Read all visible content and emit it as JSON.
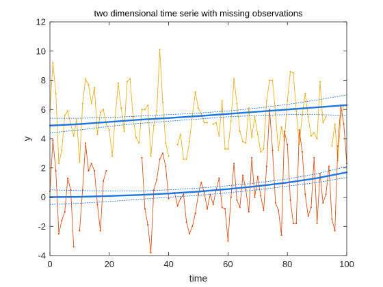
{
  "chart_data": {
    "type": "line",
    "title": "two dimensional time serie with missing observations",
    "xlabel": "time",
    "ylabel": "y",
    "xlim": [
      0,
      100
    ],
    "ylim": [
      -4,
      12
    ],
    "xticks": [
      0,
      20,
      40,
      60,
      80,
      100
    ],
    "yticks": [
      -4,
      -2,
      0,
      2,
      4,
      6,
      8,
      10,
      12
    ],
    "grid": false,
    "legend": "none",
    "series": [
      {
        "color": "#EDB120",
        "style": "line-with-dots",
        "x": [
          0,
          1,
          2,
          3,
          4,
          5,
          6,
          7,
          8,
          9,
          10,
          11,
          12,
          13,
          14,
          15,
          16,
          17,
          18,
          19,
          20,
          21,
          22,
          23,
          24,
          25,
          26,
          27,
          28,
          29,
          30,
          31,
          32,
          33,
          34,
          35,
          36,
          37,
          38,
          39,
          40,
          41,
          42,
          43,
          44,
          45,
          46,
          47,
          48,
          49,
          50,
          51,
          52,
          53,
          54,
          55,
          56,
          57,
          58,
          59,
          60,
          61,
          62,
          63,
          64,
          65,
          66,
          67,
          68,
          69,
          70,
          71,
          72,
          73,
          74,
          75,
          76,
          77,
          78,
          79,
          80,
          81,
          82,
          83,
          84,
          85,
          86,
          87,
          88,
          89,
          90,
          91,
          92,
          93,
          94,
          95,
          96,
          97,
          98,
          99,
          100
        ],
        "values": [
          5.9,
          9.2,
          7.1,
          2.3,
          3.2,
          5.6,
          5.9,
          5.0,
          4.2,
          5.3,
          2.4,
          6.4,
          8.1,
          7.7,
          6.4,
          7.5,
          4.3,
          5.8,
          6.0,
          5.0,
          4.6,
          2.8,
          5.5,
          7.8,
          6.1,
          4.5,
          7.9,
          8.1,
          5.5,
          4.1,
          3.7,
          6.0,
          6.0,
          6.3,
          2.8,
          4.9,
          5.9,
          10.1,
          6.5,
          3.7,
          2.8,
          null,
          null,
          3.6,
          4.3,
          2.6,
          2.6,
          3.8,
          5.6,
          7.2,
          6.1,
          5.7,
          5.1,
          5.1,
          null,
          5.0,
          5.1,
          4.2,
          6.6,
          3.3,
          3.3,
          5.2,
          8.1,
          6.4,
          4.5,
          3.8,
          3.7,
          6.1,
          4.1,
          5.5,
          4.3,
          3.1,
          3.3,
          6.6,
          8.0,
          8.0,
          5.7,
          3.2,
          4.8,
          3.9,
          6.6,
          8.6,
          8.5,
          5.9,
          3.6,
          5.6,
          7.1,
          5.5,
          4.2,
          4.4,
          4.0,
          7.9,
          5.1,
          5.5,
          null,
          3.5,
          5.0,
          2.5,
          5.5,
          6.3,
          null
        ]
      },
      {
        "color": "#D95319",
        "style": "line-with-dots",
        "x": [
          0,
          1,
          2,
          3,
          4,
          5,
          6,
          7,
          8,
          9,
          10,
          11,
          12,
          13,
          14,
          15,
          16,
          17,
          18,
          19,
          20,
          21,
          22,
          23,
          24,
          25,
          26,
          27,
          28,
          29,
          30,
          31,
          32,
          33,
          34,
          35,
          36,
          37,
          38,
          39,
          40,
          41,
          42,
          43,
          44,
          45,
          46,
          47,
          48,
          49,
          50,
          51,
          52,
          53,
          54,
          55,
          56,
          57,
          58,
          59,
          60,
          61,
          62,
          63,
          64,
          65,
          66,
          67,
          68,
          69,
          70,
          71,
          72,
          73,
          74,
          75,
          76,
          77,
          78,
          79,
          80,
          81,
          82,
          83,
          84,
          85,
          86,
          87,
          88,
          89,
          90,
          91,
          92,
          93,
          94,
          95,
          96,
          97,
          98,
          99,
          100
        ],
        "values": [
          0.4,
          3.9,
          1.8,
          -2.5,
          -1.6,
          -1.0,
          1.3,
          0.5,
          -3.4,
          null,
          -2.3,
          0.5,
          3.7,
          1.8,
          2.3,
          1.8,
          -0.5,
          -2.3,
          1.1,
          1.8,
          null,
          null,
          null,
          null,
          null,
          null,
          null,
          null,
          null,
          null,
          null,
          2.7,
          -0.8,
          -1.9,
          -3.8,
          0.5,
          1.2,
          2.6,
          3.0,
          2.1,
          -0.1,
          null,
          0.3,
          -0.6,
          -0.1,
          0.2,
          -1.7,
          -2.5,
          -2.0,
          -1.1,
          0.2,
          1.0,
          0.3,
          -0.8,
          0.2,
          -0.5,
          0.5,
          1.3,
          -0.7,
          -0.8,
          -3.0,
          0.0,
          2.3,
          -0.2,
          -0.7,
          1.5,
          0.5,
          -1.0,
          2.7,
          0.0,
          1.4,
          0.1,
          -0.9,
          2.1,
          6.0,
          3.2,
          -0.4,
          -0.9,
          -2.6,
          4.5,
          3.6,
          -0.2,
          -1.8,
          -1.8,
          4.6,
          3.1,
          0.2,
          -1.3,
          -0.7,
          2.7,
          -1.8,
          1.6,
          -0.4,
          0.2,
          2.1,
          -1.5,
          -2.3,
          3.5,
          6.3,
          5.0,
          2.3
        ]
      },
      {
        "color": "#1B76E4",
        "style": "trend-thick",
        "x": [
          0,
          10,
          20,
          30,
          40,
          50,
          60,
          70,
          80,
          90,
          100
        ],
        "values": [
          4.9,
          5.0,
          5.15,
          5.3,
          5.42,
          5.55,
          5.7,
          5.85,
          6.0,
          6.15,
          6.3
        ]
      },
      {
        "color": "#1B76E4",
        "style": "trend-thick",
        "x": [
          0,
          10,
          20,
          30,
          40,
          50,
          60,
          70,
          80,
          90,
          100
        ],
        "values": [
          0.0,
          0.02,
          0.08,
          0.15,
          0.25,
          0.38,
          0.55,
          0.75,
          1.0,
          1.3,
          1.7
        ]
      },
      {
        "color": "#1B76E4",
        "style": "band-dotted",
        "x": [
          0,
          10,
          20,
          30,
          40,
          50,
          60,
          70,
          80,
          90,
          100
        ],
        "values": [
          5.4,
          5.4,
          5.45,
          5.55,
          5.65,
          5.75,
          5.9,
          6.1,
          6.35,
          6.65,
          7.0
        ]
      },
      {
        "color": "#1B76E4",
        "style": "band-dotted",
        "x": [
          0,
          10,
          20,
          30,
          40,
          50,
          60,
          70,
          80,
          90,
          100
        ],
        "values": [
          4.4,
          4.6,
          4.85,
          5.05,
          5.2,
          5.35,
          5.5,
          5.6,
          5.65,
          5.65,
          5.6
        ]
      },
      {
        "color": "#1B76E4",
        "style": "band-dotted",
        "x": [
          0,
          10,
          20,
          30,
          40,
          50,
          60,
          70,
          80,
          90,
          100
        ],
        "values": [
          0.5,
          0.45,
          0.42,
          0.42,
          0.5,
          0.62,
          0.78,
          0.98,
          1.25,
          1.6,
          2.1
        ]
      },
      {
        "color": "#1B76E4",
        "style": "band-dotted",
        "x": [
          0,
          10,
          20,
          30,
          40,
          50,
          60,
          70,
          80,
          90,
          100
        ],
        "values": [
          -0.5,
          -0.42,
          -0.3,
          -0.15,
          0.0,
          0.12,
          0.3,
          0.5,
          0.75,
          1.0,
          1.35
        ]
      }
    ]
  }
}
